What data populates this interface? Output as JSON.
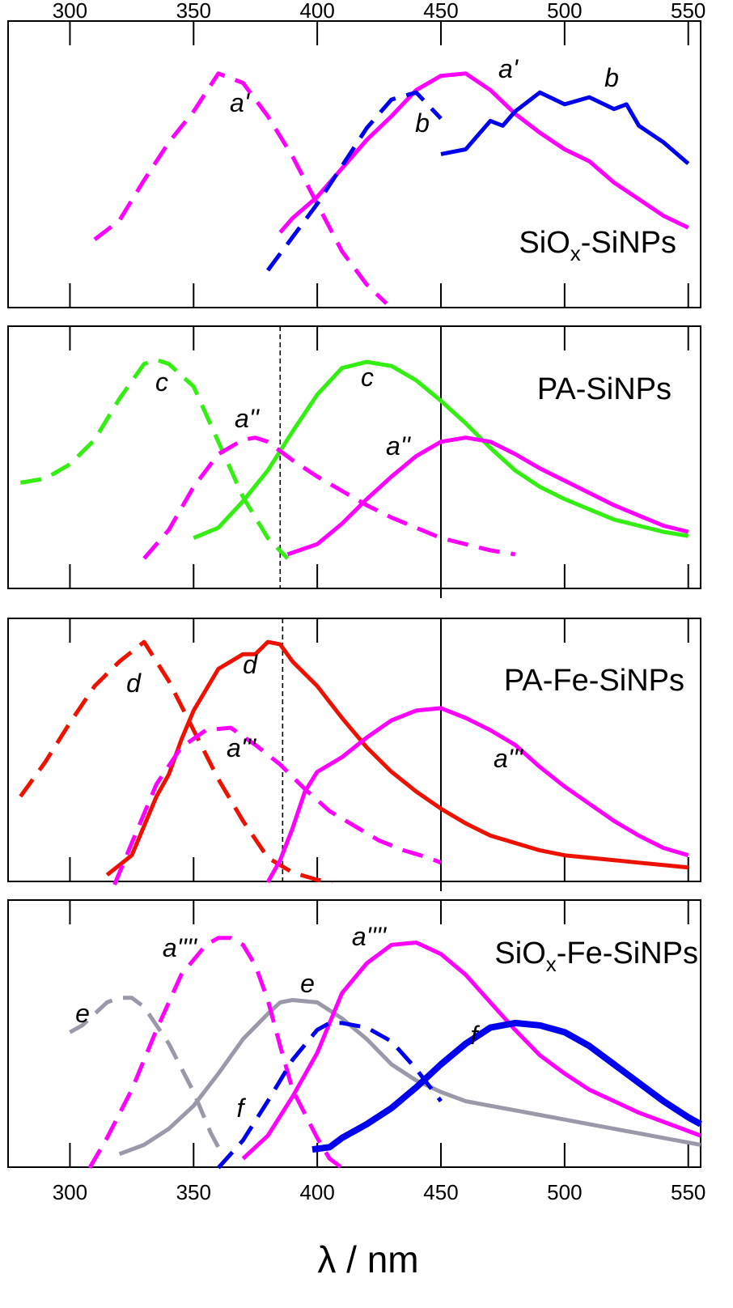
{
  "chart_data": [
    {
      "type": "line",
      "panel_label": "SiOx-SiNPs",
      "panel_label_main": "SiO",
      "panel_label_sub": "x",
      "panel_label_rest": "-SiNPs",
      "xlim": [
        275,
        555
      ],
      "ylim": [
        0,
        1.0
      ],
      "top_tick_labels": [
        "300",
        "350",
        "400",
        "450",
        "500",
        "550"
      ],
      "x_ticks": [
        300,
        350,
        400,
        450,
        500,
        550
      ],
      "series": [
        {
          "name": "a'",
          "style": "dashed",
          "color": "#ff00ff",
          "width": 5,
          "x": [
            310,
            320,
            330,
            340,
            350,
            360,
            370,
            380,
            390,
            400,
            410,
            420,
            428
          ],
          "y": [
            0.27,
            0.35,
            0.52,
            0.68,
            0.81,
            0.97,
            0.93,
            0.79,
            0.62,
            0.42,
            0.22,
            0.08,
            0.0
          ]
        },
        {
          "name": "a'",
          "style": "solid",
          "color": "#ff00ff",
          "width": 5,
          "x": [
            385,
            390,
            400,
            410,
            420,
            430,
            440,
            450,
            460,
            470,
            480,
            490,
            500,
            510,
            520,
            530,
            540,
            550
          ],
          "y": [
            0.3,
            0.36,
            0.45,
            0.57,
            0.69,
            0.79,
            0.9,
            0.96,
            0.97,
            0.9,
            0.8,
            0.72,
            0.65,
            0.6,
            0.51,
            0.44,
            0.37,
            0.32
          ]
        },
        {
          "name": "b",
          "style": "dashed",
          "color": "#0000ee",
          "width": 5,
          "x": [
            380,
            390,
            400,
            410,
            420,
            430,
            440,
            450
          ],
          "y": [
            0.14,
            0.28,
            0.42,
            0.58,
            0.74,
            0.86,
            0.89,
            0.78
          ]
        },
        {
          "name": "b",
          "style": "solid",
          "color": "#0000ee",
          "width": 5,
          "x": [
            450,
            460,
            470,
            475,
            480,
            490,
            500,
            510,
            520,
            525,
            530,
            540,
            550
          ],
          "y": [
            0.63,
            0.65,
            0.77,
            0.75,
            0.81,
            0.89,
            0.84,
            0.87,
            0.82,
            0.84,
            0.75,
            0.68,
            0.59
          ]
        }
      ],
      "annotations": [
        "a'",
        "a'",
        "b",
        "b"
      ]
    },
    {
      "type": "line",
      "panel_label": "PA-SiNPs",
      "xlim": [
        275,
        555
      ],
      "ylim": [
        0,
        1.0
      ],
      "vlines": [
        {
          "x": 385,
          "style": "dashed"
        },
        {
          "x": 450,
          "style": "solid"
        }
      ],
      "series": [
        {
          "name": "c",
          "style": "dashed",
          "color": "#33ee11",
          "width": 5,
          "x": [
            280,
            290,
            300,
            310,
            320,
            330,
            335,
            340,
            350,
            360,
            370,
            380,
            388
          ],
          "y": [
            0.37,
            0.39,
            0.46,
            0.58,
            0.78,
            0.95,
            0.97,
            0.95,
            0.84,
            0.57,
            0.3,
            0.1,
            0.0
          ]
        },
        {
          "name": "c",
          "style": "solid",
          "color": "#33ee11",
          "width": 5,
          "x": [
            350,
            360,
            370,
            380,
            390,
            400,
            410,
            420,
            430,
            440,
            450,
            460,
            470,
            480,
            490,
            500,
            510,
            520,
            530,
            540,
            550
          ],
          "y": [
            0.1,
            0.15,
            0.28,
            0.43,
            0.62,
            0.8,
            0.93,
            0.96,
            0.94,
            0.87,
            0.77,
            0.66,
            0.54,
            0.43,
            0.35,
            0.29,
            0.24,
            0.19,
            0.16,
            0.13,
            0.11
          ]
        },
        {
          "name": "a''",
          "style": "dashed",
          "color": "#ff00ff",
          "width": 5,
          "x": [
            330,
            340,
            350,
            360,
            370,
            375,
            380,
            390,
            400,
            410,
            420,
            430,
            440,
            450,
            460,
            470,
            480
          ],
          "y": [
            0.0,
            0.14,
            0.35,
            0.51,
            0.58,
            0.59,
            0.57,
            0.48,
            0.4,
            0.33,
            0.26,
            0.2,
            0.15,
            0.1,
            0.07,
            0.04,
            0.02
          ]
        },
        {
          "name": "a''",
          "style": "solid",
          "color": "#ff00ff",
          "width": 5,
          "x": [
            388,
            400,
            410,
            420,
            430,
            440,
            450,
            460,
            470,
            480,
            490,
            500,
            510,
            520,
            530,
            540,
            550
          ],
          "y": [
            0.02,
            0.07,
            0.17,
            0.29,
            0.4,
            0.5,
            0.57,
            0.59,
            0.57,
            0.51,
            0.44,
            0.38,
            0.32,
            0.26,
            0.21,
            0.16,
            0.13
          ]
        }
      ],
      "annotations": [
        "c",
        "c",
        "a''",
        "a''"
      ]
    },
    {
      "type": "line",
      "panel_label": "PA-Fe-SiNPs",
      "xlim": [
        275,
        555
      ],
      "ylim": [
        0,
        1.0
      ],
      "vlines": [
        {
          "x": 386,
          "style": "dashed"
        },
        {
          "x": 450,
          "style": "solid"
        }
      ],
      "series": [
        {
          "name": "d",
          "style": "dashed",
          "color": "#ee1100",
          "width": 5,
          "x": [
            280,
            290,
            300,
            310,
            320,
            330,
            340,
            350,
            360,
            370,
            380,
            390,
            400,
            406
          ],
          "y": [
            0.35,
            0.49,
            0.65,
            0.8,
            0.9,
            0.98,
            0.82,
            0.62,
            0.42,
            0.25,
            0.1,
            0.04,
            0.01,
            0.0
          ]
        },
        {
          "name": "d",
          "style": "solid",
          "color": "#ee1100",
          "width": 5,
          "x": [
            315,
            325,
            335,
            340,
            345,
            350,
            360,
            370,
            375,
            380,
            385,
            390,
            400,
            410,
            420,
            430,
            440,
            450,
            460,
            470,
            480,
            490,
            500,
            510,
            520,
            530,
            540,
            550
          ],
          "y": [
            0.03,
            0.11,
            0.35,
            0.44,
            0.58,
            0.7,
            0.87,
            0.93,
            0.93,
            0.98,
            0.97,
            0.9,
            0.8,
            0.67,
            0.55,
            0.45,
            0.37,
            0.3,
            0.24,
            0.19,
            0.16,
            0.13,
            0.11,
            0.1,
            0.09,
            0.08,
            0.07,
            0.06
          ]
        },
        {
          "name": "a'''",
          "style": "dashed",
          "color": "#ff00ff",
          "width": 5,
          "x": [
            318,
            325,
            335,
            345,
            355,
            365,
            375,
            385,
            395,
            405,
            415,
            425,
            435,
            445,
            450
          ],
          "y": [
            -0.01,
            0.16,
            0.4,
            0.55,
            0.62,
            0.63,
            0.56,
            0.48,
            0.38,
            0.29,
            0.23,
            0.17,
            0.13,
            0.1,
            0.08
          ]
        },
        {
          "name": "a'''",
          "style": "solid",
          "color": "#ff00ff",
          "width": 5,
          "x": [
            380,
            385,
            390,
            395,
            400,
            410,
            420,
            430,
            440,
            450,
            460,
            470,
            480,
            490,
            500,
            510,
            520,
            530,
            540,
            550
          ],
          "y": [
            0.0,
            0.09,
            0.22,
            0.37,
            0.45,
            0.51,
            0.59,
            0.66,
            0.7,
            0.71,
            0.67,
            0.62,
            0.56,
            0.47,
            0.39,
            0.32,
            0.25,
            0.19,
            0.14,
            0.11
          ]
        }
      ],
      "annotations": [
        "d",
        "d",
        "a'''",
        "a'''"
      ]
    },
    {
      "type": "line",
      "panel_label": "SiOx-Fe-SiNPs",
      "panel_label_main": "SiO",
      "panel_label_sub": "x",
      "panel_label_rest": "-Fe-SiNPs",
      "xlim": [
        275,
        555
      ],
      "ylim": [
        0,
        1.0
      ],
      "bottom_tick_labels": [
        "300",
        "350",
        "400",
        "450",
        "500",
        "550"
      ],
      "xlabel": "λ / nm",
      "series": [
        {
          "name": "e",
          "style": "dashed",
          "color": "#9999aa",
          "width": 5,
          "x": [
            300,
            305,
            310,
            315,
            320,
            325,
            330,
            340,
            350,
            357,
            362
          ],
          "y": [
            0.58,
            0.61,
            0.66,
            0.71,
            0.73,
            0.73,
            0.69,
            0.53,
            0.32,
            0.14,
            0.04
          ]
        },
        {
          "name": "e",
          "style": "solid",
          "color": "#9999aa",
          "width": 5,
          "x": [
            320,
            330,
            340,
            350,
            360,
            370,
            380,
            385,
            390,
            400,
            410,
            420,
            430,
            440,
            450,
            460,
            470,
            480,
            490,
            500,
            510,
            520,
            530,
            540,
            550,
            555
          ],
          "y": [
            0.05,
            0.09,
            0.16,
            0.26,
            0.4,
            0.55,
            0.66,
            0.71,
            0.72,
            0.71,
            0.64,
            0.55,
            0.44,
            0.37,
            0.32,
            0.28,
            0.26,
            0.24,
            0.22,
            0.2,
            0.18,
            0.16,
            0.14,
            0.12,
            0.1,
            0.09
          ]
        },
        {
          "name": "a''''",
          "style": "dashed",
          "color": "#ff00ff",
          "width": 5,
          "x": [
            308,
            315,
            325,
            335,
            345,
            355,
            360,
            365,
            370,
            375,
            380,
            385,
            390,
            400,
            405,
            410
          ],
          "y": [
            -0.01,
            0.12,
            0.33,
            0.59,
            0.83,
            0.96,
            0.99,
            0.99,
            0.96,
            0.87,
            0.72,
            0.52,
            0.33,
            0.12,
            0.03,
            -0.01
          ]
        },
        {
          "name": "a''''",
          "style": "solid",
          "color": "#ff00ff",
          "width": 5,
          "x": [
            370,
            380,
            390,
            400,
            405,
            410,
            420,
            430,
            440,
            450,
            460,
            470,
            480,
            490,
            500,
            510,
            520,
            530,
            540,
            550,
            555
          ],
          "y": [
            0.03,
            0.13,
            0.3,
            0.49,
            0.62,
            0.75,
            0.88,
            0.96,
            0.97,
            0.92,
            0.83,
            0.71,
            0.59,
            0.48,
            0.4,
            0.33,
            0.28,
            0.23,
            0.19,
            0.15,
            0.13
          ]
        },
        {
          "name": "f",
          "style": "dashed",
          "color": "#0000ee",
          "width": 5,
          "x": [
            360,
            370,
            380,
            390,
            400,
            405,
            410,
            420,
            430,
            440,
            450
          ],
          "y": [
            -0.01,
            0.11,
            0.28,
            0.46,
            0.59,
            0.62,
            0.62,
            0.6,
            0.54,
            0.42,
            0.28
          ]
        },
        {
          "name": "f",
          "style": "solid",
          "color": "#0000ee",
          "width": 8,
          "x": [
            398,
            405,
            410,
            420,
            430,
            440,
            450,
            460,
            470,
            480,
            490,
            500,
            510,
            520,
            530,
            540,
            550,
            555
          ],
          "y": [
            0.07,
            0.08,
            0.12,
            0.18,
            0.25,
            0.34,
            0.44,
            0.53,
            0.6,
            0.62,
            0.61,
            0.58,
            0.52,
            0.44,
            0.36,
            0.28,
            0.21,
            0.18
          ]
        }
      ],
      "annotations": [
        "a''''",
        "a''''",
        "e",
        "e",
        "f",
        "f"
      ]
    }
  ]
}
